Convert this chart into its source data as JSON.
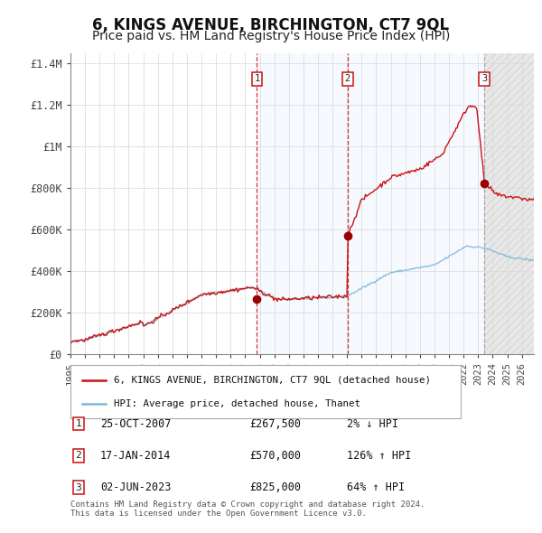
{
  "title": "6, KINGS AVENUE, BIRCHINGTON, CT7 9QL",
  "subtitle": "Price paid vs. HM Land Registry's House Price Index (HPI)",
  "xlim_start": 1995.0,
  "xlim_end": 2026.83,
  "ylim": [
    0,
    1450000
  ],
  "yticks": [
    0,
    200000,
    400000,
    600000,
    800000,
    1000000,
    1200000,
    1400000
  ],
  "ytick_labels": [
    "£0",
    "£200K",
    "£400K",
    "£600K",
    "£800K",
    "£1M",
    "£1.2M",
    "£1.4M"
  ],
  "xticks": [
    1995,
    1996,
    1997,
    1998,
    1999,
    2000,
    2001,
    2002,
    2003,
    2004,
    2005,
    2006,
    2007,
    2008,
    2009,
    2010,
    2011,
    2012,
    2013,
    2014,
    2015,
    2016,
    2017,
    2018,
    2019,
    2020,
    2021,
    2022,
    2023,
    2024,
    2025,
    2026
  ],
  "sale1_x": 2007.81,
  "sale1_y": 267500,
  "sale2_x": 2014.04,
  "sale2_y": 570000,
  "sale3_x": 2023.42,
  "sale3_y": 825000,
  "hpi_line_color": "#7fb8d8",
  "price_line_color": "#cc1111",
  "sale_marker_color": "#990000",
  "sale_vline_color_red": "#cc1111",
  "sale_vline_color_gray": "#999999",
  "bg_between_color": "#ddeeff",
  "bg_after_color": "#e0e0e0",
  "title_fontsize": 12,
  "subtitle_fontsize": 10,
  "label1_text": "25-OCT-2007",
  "label1_price": "£267,500",
  "label1_hpi": "2% ↓ HPI",
  "label2_text": "17-JAN-2014",
  "label2_price": "£570,000",
  "label2_hpi": "126% ↑ HPI",
  "label3_text": "02-JUN-2023",
  "label3_price": "£825,000",
  "label3_hpi": "64% ↑ HPI",
  "footer": "Contains HM Land Registry data © Crown copyright and database right 2024.\nThis data is licensed under the Open Government Licence v3.0."
}
